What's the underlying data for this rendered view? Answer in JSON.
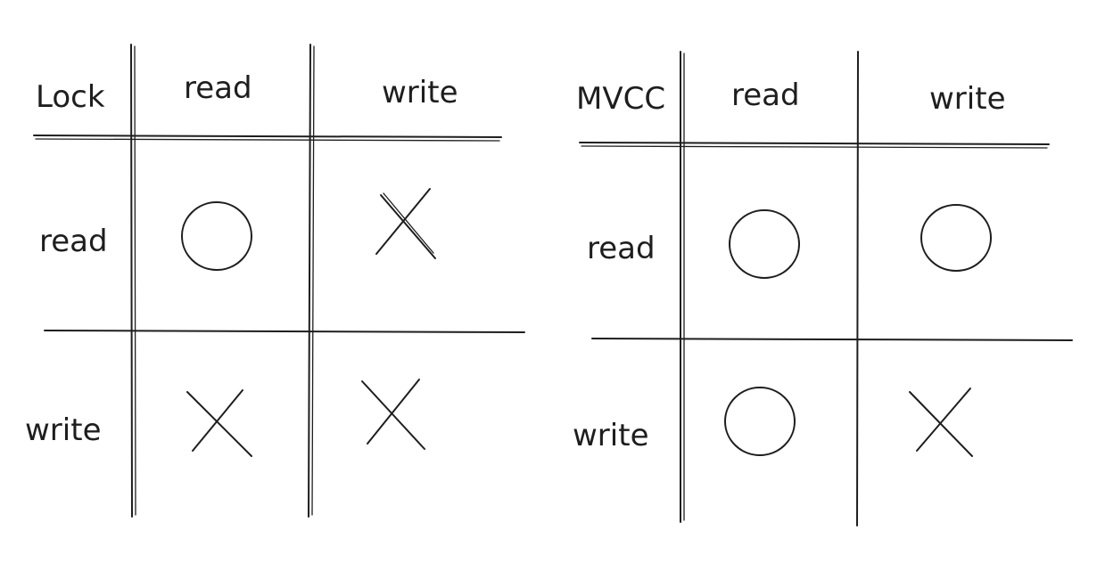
{
  "lock_table": {
    "corner": "Lock",
    "col_headers": [
      "read",
      "write"
    ],
    "row_headers": [
      "read",
      "write"
    ],
    "cells": [
      [
        "circle",
        "cross"
      ],
      [
        "cross",
        "cross"
      ]
    ]
  },
  "mvcc_table": {
    "corner": "MVCC",
    "col_headers": [
      "read",
      "write"
    ],
    "row_headers": [
      "read",
      "write"
    ],
    "cells": [
      [
        "circle",
        "circle"
      ],
      [
        "circle",
        "cross"
      ]
    ]
  }
}
